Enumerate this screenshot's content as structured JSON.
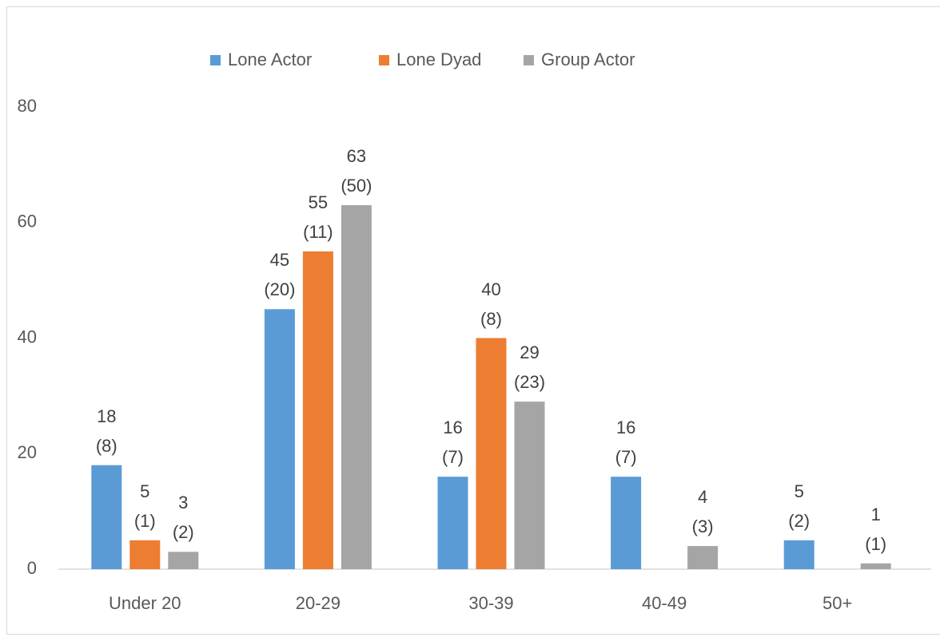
{
  "chart_data": {
    "type": "bar",
    "categories": [
      "Under 20",
      "20-29",
      "30-39",
      "40-49",
      "50+"
    ],
    "series": [
      {
        "name": "Lone Actor",
        "color": "#5b9bd5",
        "values": [
          18,
          45,
          16,
          16,
          5
        ],
        "value_labels": [
          "18\n(8)",
          "45\n(20)",
          "16\n(7)",
          "16\n(7)",
          "5\n(2)"
        ]
      },
      {
        "name": "Lone Dyad",
        "color": "#ed7d31",
        "values": [
          5,
          55,
          40,
          null,
          null
        ],
        "value_labels": [
          "5\n(1)",
          "55\n(11)",
          "40\n(8)",
          null,
          null
        ]
      },
      {
        "name": "Group Actor",
        "color": "#a5a5a5",
        "values": [
          3,
          63,
          29,
          4,
          1
        ],
        "value_labels": [
          "3\n(2)",
          "63\n(50)",
          "29\n(23)",
          "4\n(3)",
          "1\n(1)"
        ]
      }
    ],
    "ylim": [
      0,
      80
    ],
    "yticks": [
      0,
      20,
      40,
      60,
      80
    ],
    "grid": false,
    "legend": "top"
  }
}
